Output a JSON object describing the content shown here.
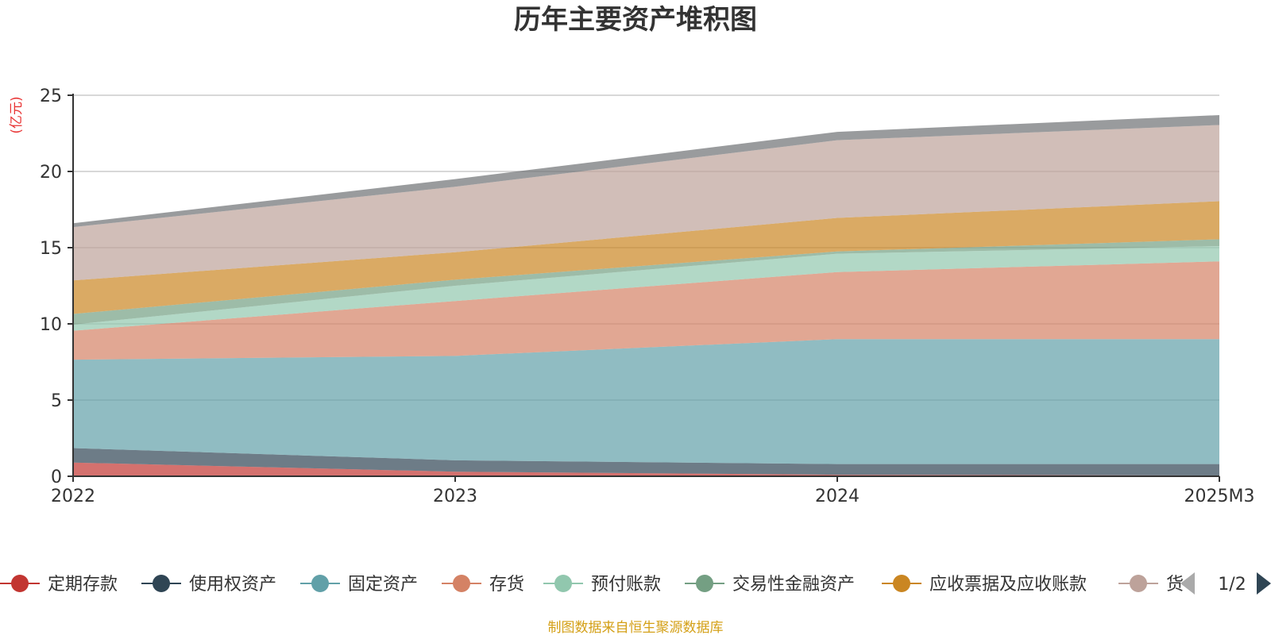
{
  "chart_data": {
    "type": "area",
    "stacked": true,
    "title": "历年主要资产堆积图",
    "ylabel": "(亿元)",
    "xlabel": "",
    "categories": [
      "2022",
      "2023",
      "2024",
      "2025M3"
    ],
    "ylim": [
      0,
      25
    ],
    "yticks": [
      0,
      5,
      10,
      15,
      20,
      25
    ],
    "grid": true,
    "legend_position": "bottom",
    "series": [
      {
        "name": "定期存款",
        "color": "#c23531",
        "values": [
          0.9,
          0.3,
          0.1,
          0.05
        ]
      },
      {
        "name": "使用权资产",
        "color": "#2f4554",
        "values": [
          0.95,
          0.75,
          0.7,
          0.75
        ]
      },
      {
        "name": "固定资产",
        "color": "#61a0a8",
        "values": [
          5.8,
          6.85,
          8.2,
          8.2
        ]
      },
      {
        "name": "存货",
        "color": "#d48265",
        "values": [
          1.9,
          3.6,
          4.4,
          5.1
        ]
      },
      {
        "name": "预付账款",
        "color": "#91c7ae",
        "values": [
          0.4,
          1.0,
          1.2,
          1.0
        ]
      },
      {
        "name": "交易性金融资产",
        "color": "#749f83",
        "values": [
          0.7,
          0.4,
          0.15,
          0.45
        ]
      },
      {
        "name": "应收票据及应收账款",
        "color": "#ca8622",
        "values": [
          2.2,
          1.8,
          2.2,
          2.5
        ]
      },
      {
        "name": "货币资金",
        "color": "#bda29a",
        "values": [
          3.5,
          4.3,
          5.1,
          5.0
        ]
      },
      {
        "name": "",
        "color": "#6e7074",
        "values": [
          0.25,
          0.5,
          0.55,
          0.65
        ]
      }
    ]
  },
  "legend": {
    "items": [
      "定期存款",
      "使用权资产",
      "固定资产",
      "存货",
      "预付账款",
      "交易性金融资产",
      "应收票据及应收账款",
      "货"
    ],
    "page": "1/2",
    "prev_icon": "triangle-left-icon",
    "next_icon": "triangle-right-icon"
  },
  "footer": "制图数据来自恒生聚源数据库"
}
